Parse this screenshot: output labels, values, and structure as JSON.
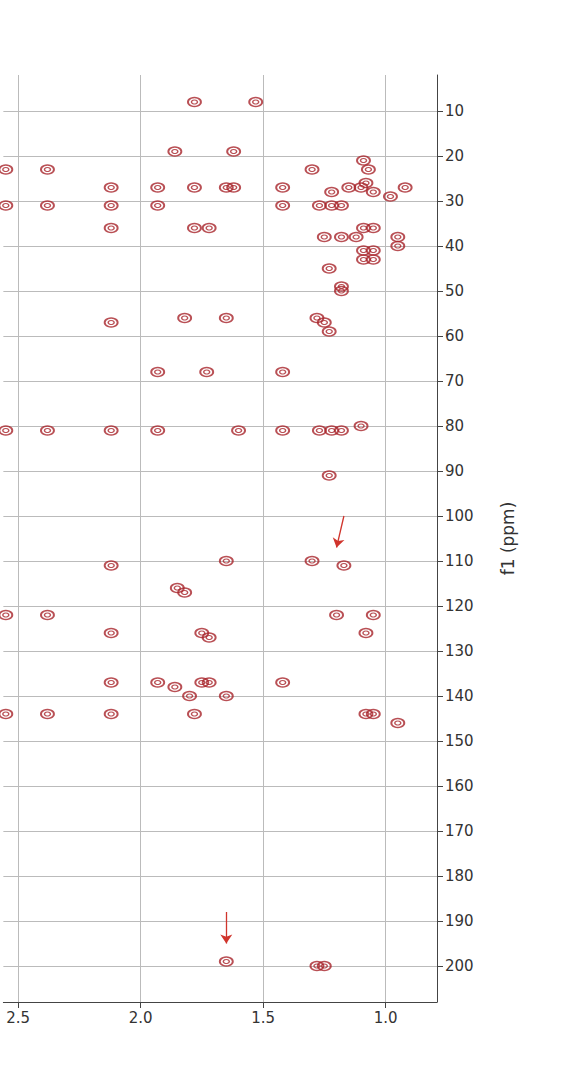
{
  "chart_data": {
    "type": "scatter",
    "ylabel": "f1 (ppm)",
    "xlim": [
      2.56,
      0.79
    ],
    "xticks": [
      2.5,
      {
        "value": 2,
        "label": "2.0"
      },
      1.5,
      {
        "value": 1,
        "label": "1.0"
      }
    ],
    "ylim": [
      208,
      2
    ],
    "yticks": [
      10,
      20,
      30,
      40,
      50,
      60,
      70,
      80,
      90,
      100,
      110,
      120,
      130,
      140,
      150,
      160,
      170,
      180,
      190,
      200
    ],
    "grid": true,
    "color": "#a8242a",
    "marker": "ellipse",
    "x": [
      1.78,
      1.53,
      2.55,
      2.38,
      1.86,
      1.62,
      1.3,
      1.09,
      1.07,
      2.12,
      1.93,
      1.78,
      1.65,
      1.62,
      1.42,
      1.22,
      1.15,
      1.1,
      1.08,
      1.05,
      0.98,
      0.92,
      2.55,
      2.38,
      2.12,
      1.93,
      1.42,
      1.27,
      1.22,
      1.18,
      2.12,
      1.78,
      1.72,
      1.09,
      1.05,
      1.25,
      1.18,
      1.12,
      0.95,
      0.95,
      1.09,
      1.05,
      1.09,
      1.05,
      1.23,
      1.18,
      1.18,
      2.12,
      1.82,
      1.65,
      1.28,
      1.25,
      1.23,
      1.93,
      1.73,
      1.42,
      2.55,
      2.38,
      2.12,
      1.93,
      1.6,
      1.42,
      1.27,
      1.22,
      1.18,
      1.1,
      1.23,
      2.12,
      1.65,
      1.3,
      1.17,
      1.82,
      1.85,
      2.55,
      2.38,
      1.2,
      1.05,
      2.12,
      1.75,
      1.72,
      1.08,
      2.12,
      1.93,
      1.75,
      1.72,
      1.42,
      1.86,
      1.8,
      1.65,
      2.55,
      2.38,
      2.12,
      1.78,
      1.08,
      1.05,
      0.95,
      1.65,
      1.28,
      1.25
    ],
    "values": [
      8,
      8,
      23,
      23,
      19,
      19,
      23,
      21,
      23,
      27,
      27,
      27,
      27,
      27,
      27,
      28,
      27,
      27,
      26,
      28,
      29,
      27,
      31,
      31,
      31,
      31,
      31,
      31,
      31,
      31,
      36,
      36,
      36,
      36,
      36,
      38,
      38,
      38,
      38,
      40,
      41,
      41,
      43,
      43,
      45,
      49,
      50,
      57,
      56,
      56,
      56,
      57,
      59,
      68,
      68,
      68,
      81,
      81,
      81,
      81,
      81,
      81,
      81,
      81,
      81,
      80,
      91,
      111,
      110,
      110,
      111,
      117,
      116,
      122,
      122,
      122,
      122,
      126,
      126,
      127,
      126,
      137,
      137,
      137,
      137,
      137,
      138,
      140,
      140,
      144,
      144,
      144,
      144,
      144,
      144,
      146,
      199,
      200,
      200
    ],
    "arrows": [
      {
        "x": [
          1.17,
          1.2
        ],
        "y": [
          100,
          107
        ],
        "color": "#d0342c"
      },
      {
        "x": [
          1.65,
          1.65
        ],
        "y": [
          188,
          195
        ],
        "color": "#d0342c"
      }
    ]
  }
}
